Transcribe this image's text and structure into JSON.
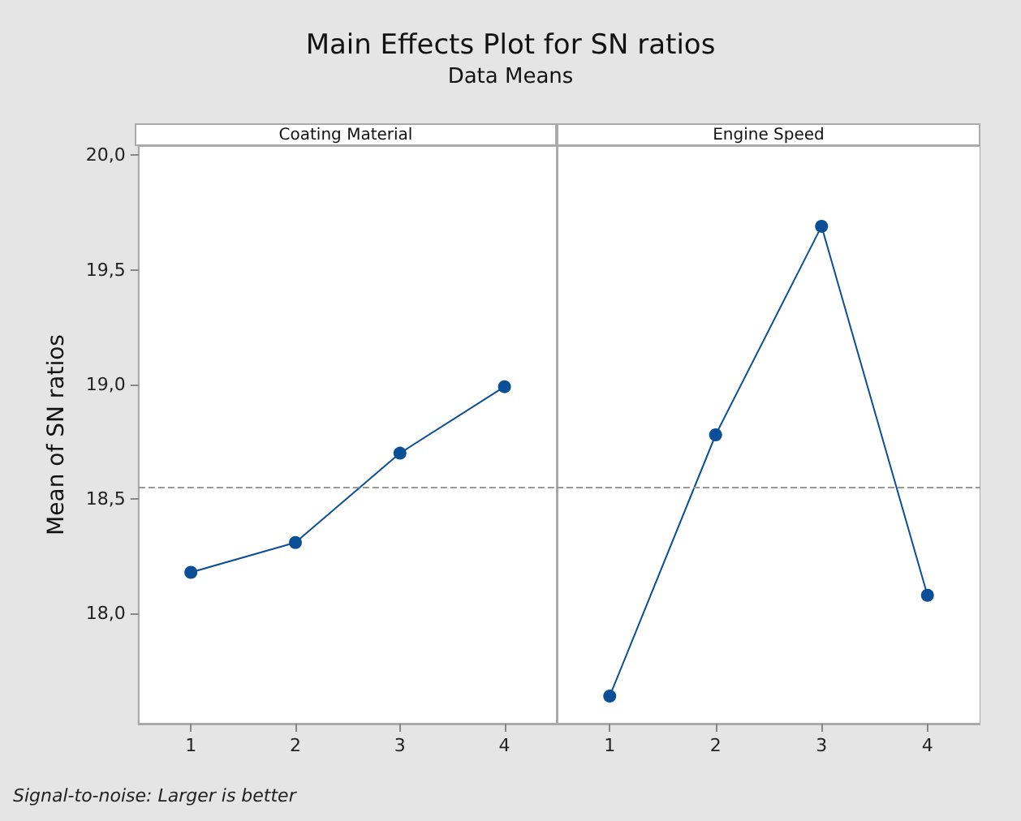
{
  "chart_data": [
    {
      "type": "line",
      "title": "Main Effects Plot for SN ratios",
      "subtitle": "Data Means",
      "xlabel": "Coating Material",
      "ylabel": "Mean of SN ratios",
      "categories": [
        "1",
        "2",
        "3",
        "4"
      ],
      "series": [
        {
          "color": "#0b4f96",
          "values": [
            18.18,
            18.31,
            18.7,
            18.99
          ]
        }
      ],
      "ylim": [
        17.52,
        20.04
      ],
      "yticks": [
        {
          "value": 18,
          "label": "18,0"
        },
        {
          "value": 18.5,
          "label": "18,5"
        },
        {
          "value": 19,
          "label": "19,0"
        },
        {
          "value": 19.5,
          "label": "19,5"
        },
        {
          "value": 20,
          "label": "20,0"
        }
      ],
      "ref_lines": [
        {
          "axis": "y",
          "value": 18.55,
          "color": "#999999",
          "line_style": "dashed"
        }
      ],
      "marker": "circle",
      "grid": false,
      "annotations": [
        "Signal-to-noise: Larger is better"
      ]
    },
    {
      "type": "line",
      "xlabel": "Engine Speed",
      "categories": [
        "1",
        "2",
        "3",
        "4"
      ],
      "series": [
        {
          "color": "#0b4f96",
          "values": [
            17.64,
            18.78,
            19.69,
            18.08
          ]
        }
      ],
      "ylim": [
        17.52,
        20.04
      ],
      "ref_lines": [
        {
          "axis": "y",
          "value": 18.55,
          "color": "#999999",
          "line_style": "dashed"
        }
      ],
      "marker": "circle",
      "grid": false,
      "tick_labels": "x"
    }
  ]
}
